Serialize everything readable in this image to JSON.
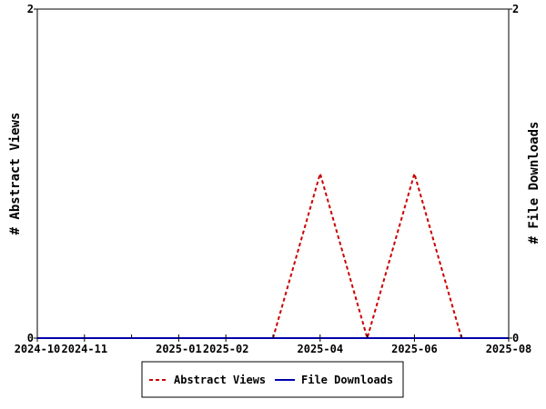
{
  "chart_data": {
    "type": "line",
    "title": "",
    "x_tick_labels": [
      "2024-10",
      "2024-11",
      "2025-01",
      "2025-02",
      "2025-04",
      "2025-06",
      "2025-08"
    ],
    "x_range": [
      "2024-10",
      "2025-08"
    ],
    "y_left": {
      "label": "# Abstract Views",
      "ticks": [
        0,
        2
      ],
      "range": [
        0,
        2
      ]
    },
    "y_right": {
      "label": "# File Downloads",
      "ticks": [
        0,
        2
      ],
      "range": [
        0,
        2
      ]
    },
    "grid": false,
    "legend_position": "bottom-center",
    "series": [
      {
        "name": "Abstract Views",
        "axis": "left",
        "color": "#cc0000",
        "dash": "dashed",
        "points": [
          {
            "x": "2024-10",
            "y": 0
          },
          {
            "x": "2024-11",
            "y": 0
          },
          {
            "x": "2024-12",
            "y": 0
          },
          {
            "x": "2025-01",
            "y": 0
          },
          {
            "x": "2025-02",
            "y": 0
          },
          {
            "x": "2025-03",
            "y": 0
          },
          {
            "x": "2025-04",
            "y": 1
          },
          {
            "x": "2025-05",
            "y": 0
          },
          {
            "x": "2025-06",
            "y": 1
          },
          {
            "x": "2025-07",
            "y": 0
          },
          {
            "x": "2025-08",
            "y": 0
          }
        ]
      },
      {
        "name": "File Downloads",
        "axis": "right",
        "color": "#0000aa",
        "dash": "solid",
        "points": [
          {
            "x": "2024-10",
            "y": 0
          },
          {
            "x": "2024-11",
            "y": 0
          },
          {
            "x": "2024-12",
            "y": 0
          },
          {
            "x": "2025-01",
            "y": 0
          },
          {
            "x": "2025-02",
            "y": 0
          },
          {
            "x": "2025-03",
            "y": 0
          },
          {
            "x": "2025-04",
            "y": 0
          },
          {
            "x": "2025-05",
            "y": 0
          },
          {
            "x": "2025-06",
            "y": 0
          },
          {
            "x": "2025-07",
            "y": 0
          },
          {
            "x": "2025-08",
            "y": 0
          }
        ]
      }
    ]
  }
}
